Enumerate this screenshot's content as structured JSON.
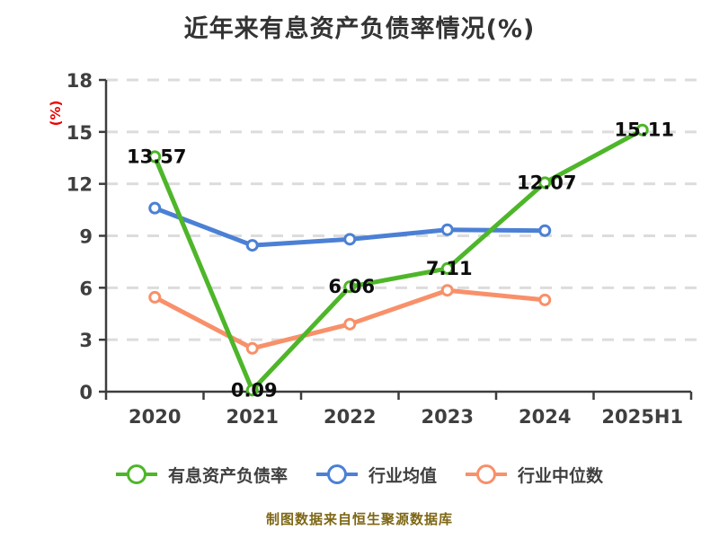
{
  "title": "近年来有息资产负债率情况(%)",
  "y_axis_unit": "(%)",
  "footer": "制图数据来自恒生聚源数据库",
  "chart_data": {
    "type": "line",
    "title": "近年来有息资产负债率情况(%)",
    "categories": [
      "2020",
      "2021",
      "2022",
      "2023",
      "2024",
      "2025H1"
    ],
    "ylabel": "(%)",
    "ylim": [
      0,
      18
    ],
    "y_ticks": [
      0,
      3,
      6,
      9,
      12,
      15,
      18
    ],
    "grid": "horizontal dashed",
    "legend_position": "bottom",
    "series": [
      {
        "name": "有息资产负债率",
        "color": "#4eb629",
        "values": [
          13.57,
          0.09,
          6.06,
          7.11,
          12.07,
          15.11
        ],
        "data_labels": [
          "13.57",
          "0.09",
          "6.06",
          "7.11",
          "12.07",
          "15.11"
        ]
      },
      {
        "name": "行业均值",
        "color": "#4b80d5",
        "values": [
          10.6,
          8.45,
          8.8,
          9.35,
          9.3
        ],
        "data_labels": []
      },
      {
        "name": "行业中位数",
        "color": "#f89069",
        "values": [
          5.45,
          2.5,
          3.9,
          5.85,
          5.3
        ],
        "data_labels": []
      }
    ]
  },
  "style_colors": {
    "background": "#ffffff",
    "axis": "#3d3d3d",
    "grid": "#dcdcdc",
    "tick_text": "#3f3f3f",
    "data_label_text": "#0d0d0d",
    "title_text": "#333333",
    "legend_text": "#3f3f3f",
    "footer_text": "#7d6614",
    "ylabel_text": "#ec0000",
    "marker_fill": "#ffffff"
  }
}
